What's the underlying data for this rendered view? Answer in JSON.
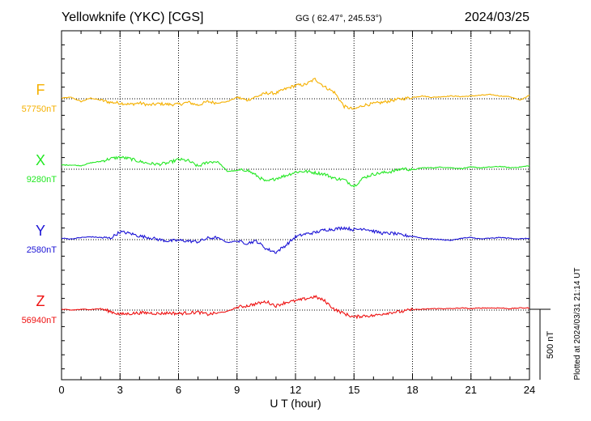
{
  "header": {
    "station": "Yellowknife (YKC)  [CGS]",
    "coords": "GG ( 62.47°, 245.53°)",
    "date": "2024/03/25"
  },
  "footer": {
    "plotted": "Plotted at 2024/03/31 21:14 UT"
  },
  "chart_data": {
    "type": "line",
    "xlabel": "U T (hour)",
    "xlim": [
      0,
      24
    ],
    "xticks": [
      "0",
      "3",
      "6",
      "9",
      "12",
      "15",
      "18",
      "21",
      "24"
    ],
    "scale_bar": "500 nT",
    "series": [
      {
        "name": "F",
        "baseline": "57750nT",
        "color": "#f5b000",
        "x": [
          0,
          0.5,
          1,
          1.5,
          2,
          2.5,
          3,
          3.5,
          4,
          4.5,
          5,
          5.5,
          6,
          6.5,
          7,
          7.5,
          8,
          8.5,
          9,
          9.5,
          10,
          10.5,
          11,
          11.5,
          12,
          12.5,
          13,
          13.5,
          14,
          14.5,
          15,
          15.5,
          16,
          16.5,
          17,
          17.5,
          18,
          18.5,
          19,
          19.5,
          20,
          20.5,
          21,
          21.5,
          22,
          22.5,
          23,
          23.5,
          24
        ],
        "values": [
          5,
          10,
          -20,
          5,
          -10,
          -25,
          -30,
          -40,
          -30,
          -45,
          -35,
          -40,
          -40,
          -25,
          -45,
          -20,
          -30,
          -20,
          10,
          -10,
          15,
          40,
          40,
          70,
          95,
          100,
          140,
          85,
          45,
          -55,
          -75,
          -45,
          -35,
          -25,
          -10,
          0,
          10,
          20,
          10,
          15,
          20,
          15,
          20,
          25,
          30,
          20,
          15,
          -10,
          25
        ]
      },
      {
        "name": "X",
        "baseline": "9280nT",
        "color": "#22e822",
        "x": [
          0,
          0.5,
          1,
          1.5,
          2,
          2.5,
          3,
          3.5,
          4,
          4.5,
          5,
          5.5,
          6,
          6.5,
          7,
          7.5,
          8,
          8.5,
          9,
          9.5,
          10,
          10.5,
          11,
          11.5,
          12,
          12.5,
          13,
          13.5,
          14,
          14.5,
          15,
          15.5,
          16,
          16.5,
          17,
          17.5,
          18,
          18.5,
          19,
          19.5,
          20,
          20.5,
          21,
          21.5,
          22,
          22.5,
          23,
          23.5,
          24
        ],
        "values": [
          30,
          30,
          25,
          45,
          55,
          75,
          85,
          75,
          55,
          40,
          35,
          45,
          70,
          60,
          20,
          50,
          55,
          -15,
          -10,
          -5,
          -45,
          -90,
          -65,
          -45,
          -20,
          -15,
          -25,
          -35,
          -65,
          -75,
          -120,
          -60,
          -35,
          -25,
          -15,
          5,
          -5,
          10,
          10,
          15,
          10,
          5,
          15,
          10,
          15,
          20,
          10,
          15,
          25
        ]
      },
      {
        "name": "Y",
        "baseline": "2580nT",
        "color": "#1c14d6",
        "x": [
          0,
          0.5,
          1,
          1.5,
          2,
          2.5,
          3,
          3.5,
          4,
          4.5,
          5,
          5.5,
          6,
          6.5,
          7,
          7.5,
          8,
          8.5,
          9,
          9.5,
          10,
          10.5,
          11,
          11.5,
          12,
          12.5,
          13,
          13.5,
          14,
          14.5,
          15,
          15.5,
          16,
          16.5,
          17,
          17.5,
          18,
          18.5,
          19,
          19.5,
          20,
          20.5,
          21,
          21.5,
          22,
          22.5,
          23,
          23.5,
          24
        ],
        "values": [
          10,
          5,
          15,
          20,
          15,
          10,
          55,
          45,
          25,
          15,
          0,
          -10,
          -5,
          -10,
          -15,
          10,
          15,
          -20,
          -10,
          -25,
          -10,
          -65,
          -90,
          -40,
          20,
          40,
          50,
          70,
          75,
          85,
          70,
          80,
          60,
          45,
          45,
          30,
          25,
          10,
          5,
          0,
          -5,
          10,
          15,
          5,
          10,
          15,
          10,
          5,
          10
        ]
      },
      {
        "name": "Z",
        "baseline": "56940nT",
        "color": "#ee1111",
        "x": [
          0,
          0.5,
          1,
          1.5,
          2,
          2.5,
          3,
          3.5,
          4,
          4.5,
          5,
          5.5,
          6,
          6.5,
          7,
          7.5,
          8,
          8.5,
          9,
          9.5,
          10,
          10.5,
          11,
          11.5,
          12,
          12.5,
          13,
          13.5,
          14,
          14.5,
          15,
          15.5,
          16,
          16.5,
          17,
          17.5,
          18,
          18.5,
          19,
          19.5,
          20,
          20.5,
          21,
          21.5,
          22,
          22.5,
          23,
          23.5,
          24
        ],
        "values": [
          5,
          0,
          5,
          5,
          10,
          -10,
          -30,
          -25,
          -20,
          -20,
          -25,
          -20,
          -25,
          -20,
          -15,
          -30,
          -20,
          -10,
          20,
          30,
          45,
          60,
          30,
          55,
          65,
          80,
          95,
          65,
          5,
          -25,
          -50,
          -40,
          -40,
          -25,
          -15,
          -10,
          5,
          5,
          10,
          10,
          10,
          15,
          10,
          15,
          15,
          15,
          10,
          15,
          15
        ]
      }
    ]
  }
}
